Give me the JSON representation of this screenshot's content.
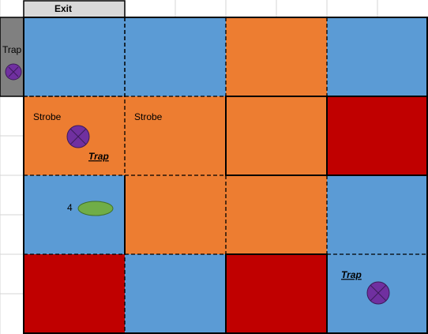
{
  "exit": "Exit",
  "labels": {
    "left_trap": "Trap",
    "strobe_1": "Strobe",
    "strobe_2": "Strobe",
    "trap_2": "Trap",
    "count": "4",
    "trap_3": "Trap"
  }
}
